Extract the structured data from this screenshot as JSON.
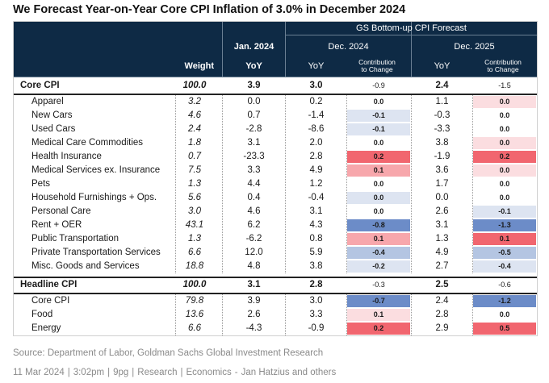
{
  "title": "We Forecast Year-on-Year Core CPI Inflation of 3.0% in December 2024",
  "header": {
    "weight": "Weight",
    "jan_label": "Jan. 2024",
    "jan_sub": "YoY",
    "group_label": "GS Bottom-up CPI Forecast",
    "dec24_label": "Dec. 2024",
    "dec25_label": "Dec. 2025",
    "yoy": "YoY",
    "contrib_line1": "Contribution",
    "contrib_line2": "to Change"
  },
  "colors": {
    "header_bg": "#0e2a45",
    "strong_positive": "#f1666f",
    "positive": "#f7a7ac",
    "light_positive": "#fbdde0",
    "zero": "#ffffff",
    "light_negative": "#dde4f1",
    "negative": "#b4c5e2",
    "strong_negative": "#6c8cc8"
  },
  "chart_data": {
    "type": "table",
    "title": "We Forecast Year-on-Year Core CPI Inflation of 3.0% in December 2024",
    "columns": [
      "Weight",
      "Jan. 2024 YoY",
      "Dec. 2024 YoY",
      "Dec. 2024 Contribution to Change",
      "Dec. 2025 YoY",
      "Dec. 2025 Contribution to Change"
    ],
    "sections": [
      {
        "total": {
          "name": "Core CPI",
          "weight": "100.0",
          "jan": "3.9",
          "yoy24": "3.0",
          "c24": "-0.9",
          "yoy25": "2.4",
          "c25": "-1.5"
        },
        "rows": [
          {
            "name": "Apparel",
            "weight": "3.2",
            "jan": "0.0",
            "yoy24": "0.2",
            "c24": "0.0",
            "yoy25": "1.1",
            "c25": "0.0",
            "c24_tone": "zero",
            "c25_tone": "light_positive"
          },
          {
            "name": "New Cars",
            "weight": "4.6",
            "jan": "0.7",
            "yoy24": "-1.4",
            "c24": "-0.1",
            "yoy25": "-0.3",
            "c25": "0.0",
            "c24_tone": "light_negative",
            "c25_tone": "zero"
          },
          {
            "name": "Used Cars",
            "weight": "2.4",
            "jan": "-2.8",
            "yoy24": "-8.6",
            "c24": "-0.1",
            "yoy25": "-3.3",
            "c25": "0.0",
            "c24_tone": "light_negative",
            "c25_tone": "zero"
          },
          {
            "name": "Medical Care Commodities",
            "weight": "1.8",
            "jan": "3.1",
            "yoy24": "2.0",
            "c24": "0.0",
            "yoy25": "3.8",
            "c25": "0.0",
            "c24_tone": "zero",
            "c25_tone": "light_positive"
          },
          {
            "name": "Health Insurance",
            "weight": "0.7",
            "jan": "-23.3",
            "yoy24": "2.8",
            "c24": "0.2",
            "yoy25": "-1.9",
            "c25": "0.2",
            "c24_tone": "strong_positive",
            "c25_tone": "strong_positive"
          },
          {
            "name": "Medical Services ex. Insurance",
            "weight": "7.5",
            "jan": "3.3",
            "yoy24": "4.9",
            "c24": "0.1",
            "yoy25": "3.6",
            "c25": "0.0",
            "c24_tone": "positive",
            "c25_tone": "light_positive"
          },
          {
            "name": "Pets",
            "weight": "1.3",
            "jan": "4.4",
            "yoy24": "1.2",
            "c24": "0.0",
            "yoy25": "1.7",
            "c25": "0.0",
            "c24_tone": "zero",
            "c25_tone": "zero"
          },
          {
            "name": "Household Furnishings + Ops.",
            "weight": "5.6",
            "jan": "0.4",
            "yoy24": "-0.4",
            "c24": "0.0",
            "yoy25": "0.0",
            "c25": "0.0",
            "c24_tone": "light_negative",
            "c25_tone": "zero"
          },
          {
            "name": "Personal Care",
            "weight": "3.0",
            "jan": "4.6",
            "yoy24": "3.1",
            "c24": "0.0",
            "yoy25": "2.6",
            "c25": "-0.1",
            "c24_tone": "zero",
            "c25_tone": "light_negative"
          },
          {
            "name": "Rent + OER",
            "weight": "43.1",
            "jan": "6.2",
            "yoy24": "4.3",
            "c24": "-0.8",
            "yoy25": "3.1",
            "c25": "-1.3",
            "c24_tone": "strong_negative",
            "c25_tone": "strong_negative"
          },
          {
            "name": "Public Transportation",
            "weight": "1.3",
            "jan": "-6.2",
            "yoy24": "0.8",
            "c24": "0.1",
            "yoy25": "1.3",
            "c25": "0.1",
            "c24_tone": "positive",
            "c25_tone": "strong_positive"
          },
          {
            "name": "Private Transportation Services",
            "weight": "6.6",
            "jan": "12.0",
            "yoy24": "5.9",
            "c24": "-0.4",
            "yoy25": "4.9",
            "c25": "-0.5",
            "c24_tone": "negative",
            "c25_tone": "negative"
          },
          {
            "name": "Misc. Goods and Services",
            "weight": "18.8",
            "jan": "4.8",
            "yoy24": "3.8",
            "c24": "-0.2",
            "yoy25": "2.7",
            "c25": "-0.4",
            "c24_tone": "light_negative",
            "c25_tone": "light_negative"
          }
        ]
      },
      {
        "total": {
          "name": "Headline CPI",
          "weight": "100.0",
          "jan": "3.1",
          "yoy24": "2.8",
          "c24": "-0.3",
          "yoy25": "2.5",
          "c25": "-0.6"
        },
        "rows": [
          {
            "name": "Core CPI",
            "weight": "79.8",
            "jan": "3.9",
            "yoy24": "3.0",
            "c24": "-0.7",
            "yoy25": "2.4",
            "c25": "-1.2",
            "c24_tone": "strong_negative",
            "c25_tone": "strong_negative"
          },
          {
            "name": "Food",
            "weight": "13.6",
            "jan": "2.6",
            "yoy24": "3.3",
            "c24": "0.1",
            "yoy25": "2.8",
            "c25": "0.0",
            "c24_tone": "light_positive",
            "c25_tone": "zero"
          },
          {
            "name": "Energy",
            "weight": "6.6",
            "jan": "-4.3",
            "yoy24": "-0.9",
            "c24": "0.2",
            "yoy25": "2.9",
            "c25": "0.5",
            "c24_tone": "strong_positive",
            "c25_tone": "strong_positive"
          }
        ]
      }
    ]
  },
  "source": "Source: Department of Labor, Goldman Sachs Global Investment Research",
  "footer": {
    "date": "11 Mar 2024",
    "time": "3:02pm",
    "pages": "9pg",
    "category": "Research",
    "topic": "Economics",
    "author": "Jan Hatzius and others",
    "separator": "|",
    "dash": "-"
  }
}
